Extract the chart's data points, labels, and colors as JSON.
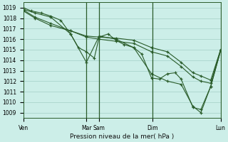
{
  "title": "Pression niveau de la mer( hPa )",
  "xlim": [
    0,
    1.0
  ],
  "ylim": [
    1008.5,
    1019.5
  ],
  "yticks": [
    1009,
    1010,
    1011,
    1012,
    1013,
    1014,
    1015,
    1016,
    1017,
    1018,
    1019
  ],
  "xtick_positions": [
    0.0,
    0.32,
    0.385,
    0.655,
    1.0
  ],
  "xtick_labels": [
    "Ven",
    "Mar",
    "Sam",
    "Dim",
    "Lun"
  ],
  "bg_color": "#cceee8",
  "line_color": "#2a5c2a",
  "grid_color": "#aad4cc",
  "vline_positions": [
    0.32,
    0.385,
    0.655,
    1.0
  ],
  "lines": [
    [
      0.0,
      1019.0,
      0.04,
      1018.7,
      0.09,
      1018.5,
      0.14,
      1018.2,
      0.19,
      1017.8,
      0.24,
      1016.5,
      0.28,
      1015.2,
      0.32,
      1014.8,
      0.36,
      1014.2,
      0.385,
      1016.2,
      0.43,
      1016.5,
      0.47,
      1015.9,
      0.51,
      1015.5,
      0.56,
      1015.2,
      0.6,
      1014.6,
      0.65,
      1012.3,
      0.69,
      1012.2,
      0.73,
      1012.7,
      0.77,
      1012.8,
      0.8,
      1012.2,
      0.86,
      1009.5,
      0.9,
      1009.3,
      0.95,
      1011.5,
      1.0,
      1014.9
    ],
    [
      0.0,
      1018.85,
      0.06,
      1018.5,
      0.14,
      1018.1,
      0.24,
      1016.5,
      0.32,
      1013.8,
      0.385,
      1016.3,
      0.47,
      1016.0,
      0.56,
      1015.2,
      0.65,
      1012.7,
      0.73,
      1012.0,
      0.8,
      1011.7,
      0.86,
      1009.6,
      0.9,
      1009.0,
      0.95,
      1011.5,
      1.0,
      1014.9
    ],
    [
      0.0,
      1018.8,
      0.06,
      1018.1,
      0.14,
      1017.5,
      0.24,
      1016.8,
      0.32,
      1016.3,
      0.385,
      1016.2,
      0.47,
      1016.1,
      0.56,
      1015.9,
      0.65,
      1015.2,
      0.73,
      1014.8,
      0.8,
      1013.8,
      0.86,
      1012.8,
      0.9,
      1012.5,
      0.95,
      1012.1,
      1.0,
      1015.0
    ],
    [
      0.0,
      1018.7,
      0.06,
      1018.0,
      0.14,
      1017.3,
      0.24,
      1016.8,
      0.32,
      1016.2,
      0.385,
      1016.0,
      0.47,
      1015.8,
      0.56,
      1015.6,
      0.65,
      1014.8,
      0.73,
      1014.4,
      0.8,
      1013.4,
      0.86,
      1012.4,
      0.9,
      1012.0,
      0.95,
      1011.8,
      1.0,
      1015.0
    ]
  ]
}
